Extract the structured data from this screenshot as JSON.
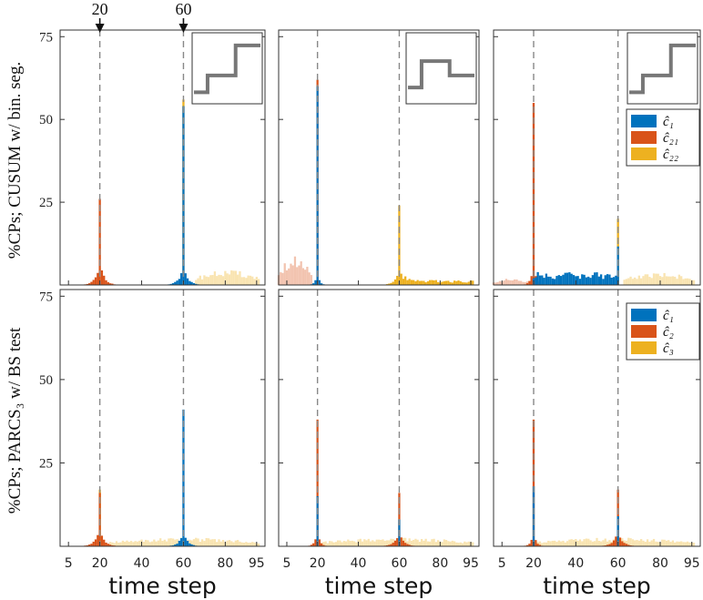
{
  "figure": {
    "xlabel": "time step",
    "row_labels": [
      "%CPs; CUSUM w/ bin. seg.",
      "%CPs; PARCS₃ w/ BS test"
    ],
    "x_ticks": [
      5,
      20,
      40,
      60,
      80,
      95
    ],
    "y_ticks": [
      25,
      50,
      75
    ],
    "markers": [
      "20",
      "60"
    ],
    "legend_top": [
      {
        "name": "ĉ₁",
        "color": "#0072bd"
      },
      {
        "name": "ĉ₂₁",
        "color": "#d95319"
      },
      {
        "name": "ĉ₂₂",
        "color": "#edb120"
      }
    ],
    "legend_bottom": [
      {
        "name": "ĉ₁",
        "color": "#0072bd"
      },
      {
        "name": "ĉ₂",
        "color": "#d95319"
      },
      {
        "name": "ĉ₃",
        "color": "#edb120"
      }
    ]
  },
  "chart_data": [
    {
      "type": "bar",
      "panel": "row1-col1",
      "xlim": [
        1,
        99
      ],
      "ylim": [
        0,
        77
      ],
      "inset": "up-up",
      "xlabel": "time step",
      "ylabel": "%CPs; CUSUM w/ bin. seg.",
      "series": [
        {
          "name": "ĉ₁",
          "color": "#0072bd",
          "peaks": [
            {
              "x": 60,
              "h": 54,
              "w": 2.2,
              "s": 5
            }
          ],
          "bg": []
        },
        {
          "name": "ĉ₂₁",
          "color": "#d95319",
          "peaks": [
            {
              "x": 20,
              "h": 26,
              "w": 2.0,
              "s": 7
            }
          ],
          "bg": []
        },
        {
          "name": "ĉ₂₂",
          "color": "#edb120",
          "peaks": [
            {
              "x": 60,
              "h": 56,
              "w": 1.2,
              "s": 0
            }
          ],
          "bg": [
            {
              "from": 66,
              "to": 96,
              "h": 3.5,
              "faded": true
            }
          ]
        }
      ]
    },
    {
      "type": "bar",
      "panel": "row1-col2",
      "xlim": [
        1,
        99
      ],
      "ylim": [
        0,
        77
      ],
      "inset": "up-down",
      "xlabel": "time step",
      "series": [
        {
          "name": "ĉ₁",
          "color": "#0072bd",
          "peaks": [
            {
              "x": 20,
              "h": 60,
              "w": 1.2,
              "s": 3
            }
          ],
          "bg": []
        },
        {
          "name": "ĉ₂₁",
          "color": "#d95319",
          "peaks": [
            {
              "x": 20,
              "h": 62,
              "w": 1.2,
              "s": 0
            }
          ],
          "bg": [
            {
              "from": 1,
              "to": 17,
              "h": 7,
              "faded": true
            }
          ]
        },
        {
          "name": "ĉ₂₂",
          "color": "#edb120",
          "peaks": [
            {
              "x": 60,
              "h": 24,
              "w": 2.0,
              "s": 5
            }
          ],
          "bg": [
            {
              "from": 63,
              "to": 96,
              "h": 1.2,
              "faded": false
            }
          ]
        }
      ]
    },
    {
      "type": "bar",
      "panel": "row1-col3",
      "xlim": [
        1,
        99
      ],
      "ylim": [
        0,
        77
      ],
      "inset": "up-up",
      "xlabel": "time step",
      "series": [
        {
          "name": "ĉ₁",
          "color": "#0072bd",
          "peaks": [
            {
              "x": 60,
              "h": 8,
              "w": 2.0,
              "s": 0
            }
          ],
          "bg": [
            {
              "from": 20,
              "to": 60,
              "h": 3,
              "faded": false
            }
          ]
        },
        {
          "name": "ĉ₂₁",
          "color": "#d95319",
          "peaks": [
            {
              "x": 20,
              "h": 55,
              "w": 1.2,
              "s": 6
            }
          ],
          "bg": [
            {
              "from": 1,
              "to": 17,
              "h": 1.5,
              "faded": true
            }
          ]
        },
        {
          "name": "ĉ₂₂",
          "color": "#edb120",
          "peaks": [
            {
              "x": 60,
              "h": 20,
              "w": 1.5,
              "s": 0
            }
          ],
          "bg": [
            {
              "from": 63,
              "to": 96,
              "h": 3,
              "faded": true
            }
          ]
        }
      ]
    },
    {
      "type": "bar",
      "panel": "row2-col1",
      "xlim": [
        1,
        99
      ],
      "ylim": [
        0,
        77
      ],
      "xlabel": "time step",
      "ylabel": "%CPs; PARCS₃ w/ BS test",
      "series": [
        {
          "name": "ĉ₁",
          "color": "#0072bd",
          "peaks": [
            {
              "x": 60,
              "h": 41,
              "w": 2.0,
              "s": 4
            }
          ],
          "bg": []
        },
        {
          "name": "ĉ₂",
          "color": "#d95319",
          "peaks": [
            {
              "x": 20,
              "h": 16,
              "w": 2.2,
              "s": 5
            }
          ],
          "bg": []
        },
        {
          "name": "ĉ₃",
          "color": "#edb120",
          "peaks": [
            {
              "x": 20,
              "h": 17,
              "w": 1.0,
              "s": 0
            }
          ],
          "bg": [
            {
              "from": 25,
              "to": 96,
              "h": 2.0,
              "faded": true
            }
          ]
        }
      ]
    },
    {
      "type": "bar",
      "panel": "row2-col2",
      "xlim": [
        1,
        99
      ],
      "ylim": [
        0,
        77
      ],
      "xlabel": "time step",
      "series": [
        {
          "name": "ĉ₁",
          "color": "#0072bd",
          "peaks": [
            {
              "x": 20,
              "h": 15,
              "w": 1.5,
              "s": 0
            },
            {
              "x": 60,
              "h": 8,
              "w": 1.8,
              "s": 0
            }
          ],
          "bg": []
        },
        {
          "name": "ĉ₂",
          "color": "#d95319",
          "peaks": [
            {
              "x": 20,
              "h": 38,
              "w": 1.3,
              "s": 4
            },
            {
              "x": 60,
              "h": 16,
              "w": 2.2,
              "s": 4
            }
          ],
          "bg": []
        },
        {
          "name": "ĉ₃",
          "color": "#edb120",
          "peaks": [],
          "bg": [
            {
              "from": 22,
              "to": 96,
              "h": 2.0,
              "faded": true
            }
          ]
        }
      ]
    },
    {
      "type": "bar",
      "panel": "row2-col3",
      "xlim": [
        1,
        99
      ],
      "ylim": [
        0,
        77
      ],
      "xlabel": "time step",
      "series": [
        {
          "name": "ĉ₁",
          "color": "#0072bd",
          "peaks": [
            {
              "x": 20,
              "h": 18,
              "w": 1.5,
              "s": 0
            },
            {
              "x": 60,
              "h": 9,
              "w": 1.8,
              "s": 0
            }
          ],
          "bg": []
        },
        {
          "name": "ĉ₂",
          "color": "#d95319",
          "peaks": [
            {
              "x": 20,
              "h": 38,
              "w": 1.3,
              "s": 4
            },
            {
              "x": 60,
              "h": 17,
              "w": 2.2,
              "s": 4
            }
          ],
          "bg": []
        },
        {
          "name": "ĉ₃",
          "color": "#edb120",
          "peaks": [],
          "bg": [
            {
              "from": 22,
              "to": 96,
              "h": 2.0,
              "faded": true
            }
          ]
        }
      ]
    }
  ]
}
